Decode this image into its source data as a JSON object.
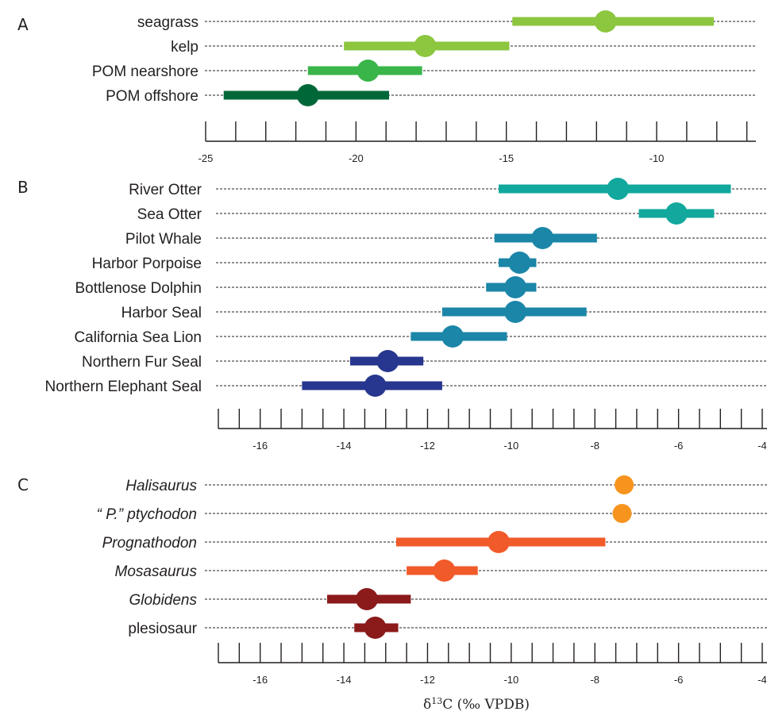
{
  "chart_data": [
    {
      "type": "dot-errorbar",
      "panel": "A",
      "xlim": [
        -25,
        -6.7
      ],
      "major_ticks": [
        -25,
        -20,
        -15,
        -10
      ],
      "minor_step": 1,
      "series": [
        {
          "name": "seagrass",
          "mean": -11.7,
          "low": -14.8,
          "high": -8.1,
          "color": "#8dc63f"
        },
        {
          "name": "kelp",
          "mean": -17.7,
          "low": -20.4,
          "high": -14.9,
          "color": "#8dc63f"
        },
        {
          "name": "POM nearshore",
          "mean": -19.6,
          "low": -21.6,
          "high": -17.8,
          "color": "#39b54a"
        },
        {
          "name": "POM offshore",
          "mean": -21.6,
          "low": -24.4,
          "high": -18.9,
          "color": "#006838"
        }
      ]
    },
    {
      "type": "dot-errorbar",
      "panel": "B",
      "xlim": [
        -17,
        -4
      ],
      "major_ticks": [
        -16,
        -14,
        -12,
        -10,
        -8,
        -6,
        -4
      ],
      "minor_step": 0.5,
      "series": [
        {
          "name": "River Otter",
          "mean": -7.45,
          "low": -10.3,
          "high": -4.75,
          "color": "#12a89d"
        },
        {
          "name": "Sea Otter",
          "mean": -6.05,
          "low": -6.95,
          "high": -5.15,
          "color": "#12a89d"
        },
        {
          "name": "Pilot Whale",
          "mean": -9.25,
          "low": -10.4,
          "high": -7.95,
          "color": "#1b86a8"
        },
        {
          "name": "Harbor Porpoise",
          "mean": -9.8,
          "low": -10.3,
          "high": -9.4,
          "color": "#1b86a8"
        },
        {
          "name": "Bottlenose Dolphin",
          "mean": -9.9,
          "low": -10.6,
          "high": -9.4,
          "color": "#1b86a8"
        },
        {
          "name": "Harbor Seal",
          "mean": -9.9,
          "low": -11.65,
          "high": -8.2,
          "color": "#1b86a8"
        },
        {
          "name": "California Sea Lion",
          "mean": -11.4,
          "low": -12.4,
          "high": -10.1,
          "color": "#1b86a8"
        },
        {
          "name": "Northern Fur Seal",
          "mean": -12.95,
          "low": -13.85,
          "high": -12.1,
          "color": "#27368e"
        },
        {
          "name": "Northern Elephant Seal",
          "mean": -13.25,
          "low": -15.0,
          "high": -11.65,
          "color": "#27368e"
        }
      ]
    },
    {
      "type": "dot-errorbar",
      "panel": "C",
      "xlim": [
        -17,
        -4
      ],
      "major_ticks": [
        -16,
        -14,
        -12,
        -10,
        -8,
        -6,
        -4
      ],
      "minor_step": 0.5,
      "xlabel": "δ13C (‰ VPDB)",
      "series": [
        {
          "name": "Halisaurus",
          "mean": -7.3,
          "low": null,
          "high": null,
          "color": "#f7941d",
          "italic": true
        },
        {
          "name": "“ P.” ptychodon",
          "mean": -7.35,
          "low": null,
          "high": null,
          "color": "#f7941d",
          "italic": true
        },
        {
          "name": "Prognathodon",
          "mean": -10.3,
          "low": -12.75,
          "high": -7.75,
          "color": "#f15a29",
          "italic": true
        },
        {
          "name": "Mosasaurus",
          "mean": -11.6,
          "low": -12.5,
          "high": -10.8,
          "color": "#f15a29",
          "italic": true
        },
        {
          "name": "Globidens",
          "mean": -13.45,
          "low": -14.4,
          "high": -12.4,
          "color": "#8b1a1a",
          "italic": true
        },
        {
          "name": "plesiosaur",
          "mean": -13.25,
          "low": -13.75,
          "high": -12.7,
          "color": "#8b1a1a",
          "italic": false
        }
      ]
    }
  ],
  "labels": {
    "panel_a": "A",
    "panel_b": "B",
    "panel_c": "C",
    "axis_title_delta": "δ",
    "axis_title_sup": "13",
    "axis_title_rest": "C (‰ VPDB)"
  }
}
